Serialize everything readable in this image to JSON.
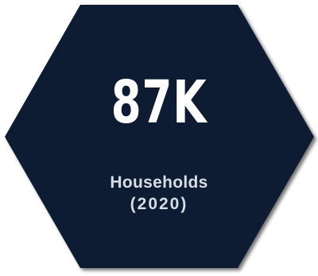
{
  "badge": {
    "value": "87K",
    "label_line1": "Households",
    "label_line2": "(2020)",
    "fill_color": "#0f1e33",
    "shadow_color": "#8b8b8b",
    "text_color": "#ffffff",
    "label_color": "#d6dde4"
  }
}
